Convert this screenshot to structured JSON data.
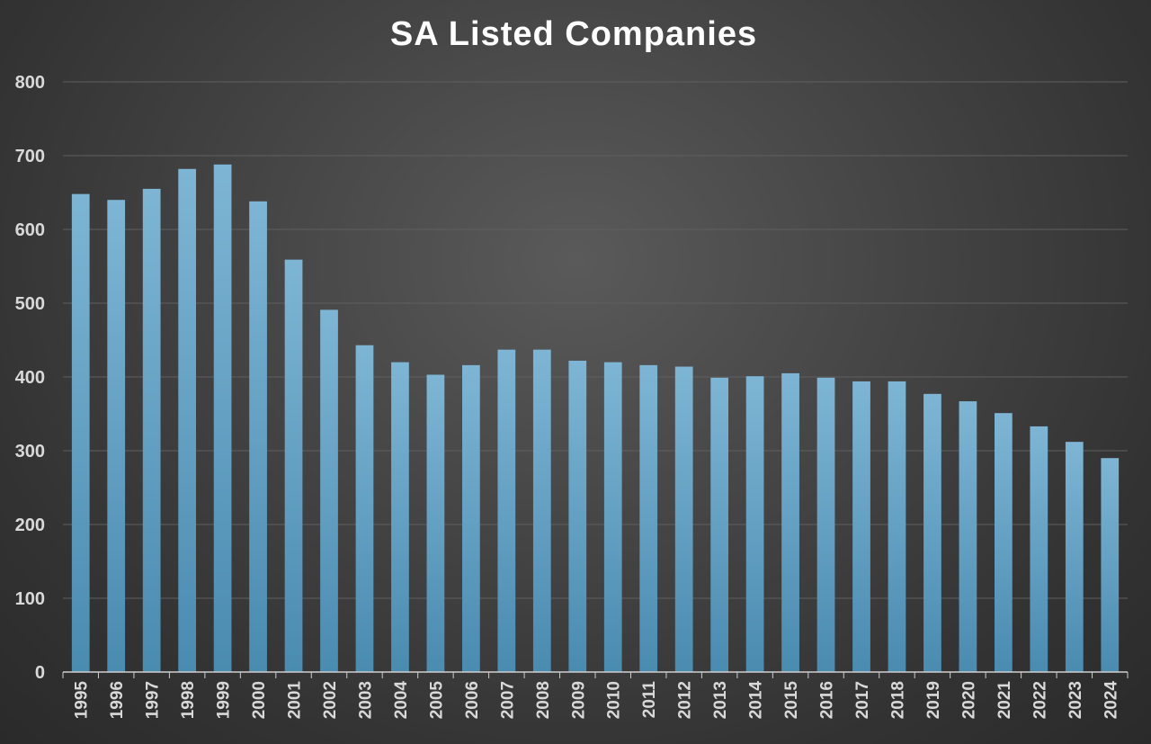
{
  "chart_data": {
    "type": "bar",
    "title": "SA Listed Companies",
    "xlabel": "",
    "ylabel": "",
    "ylim": [
      0,
      800
    ],
    "yticks": [
      0,
      100,
      200,
      300,
      400,
      500,
      600,
      700,
      800
    ],
    "grid": true,
    "legend": "none",
    "categories": [
      "1995",
      "1996",
      "1997",
      "1998",
      "1999",
      "2000",
      "2001",
      "2002",
      "2003",
      "2004",
      "2005",
      "2006",
      "2007",
      "2008",
      "2009",
      "2010",
      "2011",
      "2012",
      "2013",
      "2014",
      "2015",
      "2016",
      "2017",
      "2018",
      "2019",
      "2020",
      "2021",
      "2022",
      "2023",
      "2024"
    ],
    "series": [
      {
        "values": [
          648,
          640,
          655,
          682,
          688,
          638,
          559,
          491,
          443,
          420,
          403,
          416,
          437,
          437,
          422,
          420,
          416,
          414,
          399,
          401,
          405,
          399,
          394,
          394,
          377,
          367,
          351,
          333,
          312,
          290
        ]
      }
    ],
    "colors": {
      "bar_top": "#7eb5d4",
      "bar_bottom": "#4a8bb0",
      "grid": "#5f5f5f",
      "axis": "#cfcfcf",
      "text": "#d9d9d9",
      "title": "#ffffff"
    }
  }
}
